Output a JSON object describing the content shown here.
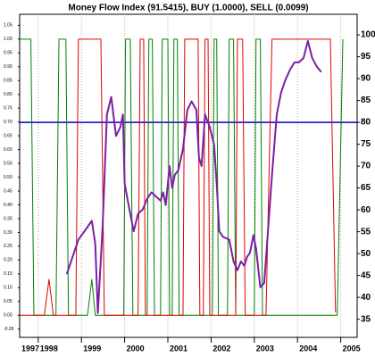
{
  "chart_data": {
    "type": "line",
    "title": "Money Flow Index (91.5415), BUY (1.0000), SELL (0.0099)",
    "xlim": [
      1997.57,
      2005.38
    ],
    "xticks": [
      1997,
      1998,
      1999,
      2000,
      2001,
      2002,
      2003,
      2004,
      2005
    ],
    "ylim": [
      -0.08,
      1.09
    ],
    "yticks": [
      1.05,
      {
        "value": 1.0,
        "label": "1.00"
      },
      0.95,
      {
        "value": 0.9,
        "label": "0.90"
      },
      0.85,
      {
        "value": 0.8,
        "label": "0.80"
      },
      0.75,
      {
        "value": 0.7,
        "label": "0.70"
      },
      0.65,
      {
        "value": 0.6,
        "label": "0.60"
      },
      0.55,
      {
        "value": 0.5,
        "label": "0.50"
      },
      0.45,
      {
        "value": 0.4,
        "label": "0.40"
      },
      0.35,
      {
        "value": 0.3,
        "label": "0.30"
      },
      0.25,
      {
        "value": 0.2,
        "label": "0.20"
      },
      0.15,
      {
        "value": 0.1,
        "label": "0.10"
      },
      0.05,
      {
        "value": 0.0,
        "label": "0.00"
      },
      -0.05
    ],
    "y2lim": [
      30.85,
      104.7
    ],
    "y2ticks": [
      100,
      95,
      90,
      85,
      80,
      75,
      70,
      65,
      60,
      55,
      50,
      45,
      40,
      35
    ],
    "xgrid": true,
    "reference_lines": [
      {
        "axis": "y2",
        "value": 80,
        "color": "#0000cc"
      }
    ],
    "series": [
      {
        "color": "#008000",
        "axis": "y",
        "x": [
          1997.57,
          1997.83,
          1997.9,
          1998.41,
          1998.48,
          1998.64,
          1998.7,
          1999.14,
          1999.24,
          1999.32,
          1999.98,
          2000.02,
          2000.13,
          2000.19,
          2000.52,
          2000.56,
          2000.64,
          2000.69,
          2000.83,
          2000.87,
          2001.0,
          2001.04,
          2001.1,
          2001.14,
          2001.22,
          2001.26,
          2002.03,
          2002.07,
          2002.13,
          2002.17,
          2002.38,
          2002.42,
          2002.52,
          2002.57,
          2003.0,
          2003.04,
          2003.14,
          2003.19,
          2004.92,
          2005.05
        ],
        "values": [
          1,
          1,
          0,
          0,
          1,
          1,
          0,
          0,
          0.13,
          0,
          0,
          1,
          1,
          0,
          0,
          1,
          1,
          0,
          0,
          1,
          1,
          0,
          0,
          1,
          1,
          0,
          0,
          1,
          1,
          0,
          0,
          1,
          1,
          0,
          0,
          1,
          1,
          0,
          0,
          1
        ]
      },
      {
        "color": "#e00000",
        "axis": "y",
        "x": [
          1997.57,
          1998.14,
          1998.25,
          1998.35,
          1998.87,
          1998.93,
          1999.45,
          1999.53,
          2000.31,
          2000.36,
          2000.44,
          2000.48,
          2001.35,
          2001.39,
          2001.7,
          2001.74,
          2001.82,
          2001.86,
          2001.93,
          2001.97,
          2002.57,
          2002.61,
          2002.73,
          2002.79,
          2003.27,
          2003.41,
          2004.76,
          2004.88
        ],
        "values": [
          0,
          0,
          0.13,
          0,
          0,
          1,
          1,
          0,
          0,
          1,
          1,
          0,
          0,
          1,
          1,
          0,
          0,
          1,
          1,
          0,
          0,
          1,
          1,
          0,
          0,
          1,
          1,
          0.01
        ]
      },
      {
        "color": "#7b1fa2",
        "axis": "y2",
        "x": [
          1998.66,
          1998.76,
          1998.93,
          1999.07,
          1999.24,
          1999.32,
          1999.38,
          1999.49,
          1999.59,
          1999.69,
          1999.8,
          1999.9,
          1999.96,
          2000.0,
          2000.11,
          2000.21,
          2000.31,
          2000.42,
          2000.52,
          2000.62,
          2000.73,
          2000.83,
          2000.89,
          2000.95,
          2001.04,
          2001.1,
          2001.16,
          2001.24,
          2001.35,
          2001.45,
          2001.55,
          2001.66,
          2001.72,
          2001.78,
          2001.86,
          2001.97,
          2002.07,
          2002.13,
          2002.19,
          2002.28,
          2002.42,
          2002.52,
          2002.61,
          2002.69,
          2002.77,
          2002.83,
          2002.9,
          2002.98,
          2003.04,
          2003.14,
          2003.23,
          2003.31,
          2003.41,
          2003.52,
          2003.62,
          2003.72,
          2003.83,
          2003.93,
          2004.03,
          2004.14,
          2004.24,
          2004.34,
          2004.45,
          2004.55
        ],
        "values": [
          45.3,
          48.2,
          53.2,
          55.1,
          57.5,
          52.2,
          36.4,
          56.1,
          81.8,
          85.8,
          76.9,
          78.9,
          81.8,
          66.0,
          60.1,
          55.1,
          59.1,
          60.1,
          62.5,
          64.0,
          63.0,
          62.1,
          64.0,
          61.1,
          70.0,
          65.0,
          68.0,
          69.0,
          73.9,
          82.8,
          84.8,
          82.8,
          71.9,
          70.0,
          81.8,
          78.9,
          74.9,
          66.0,
          55.1,
          53.8,
          53.2,
          48.2,
          46.2,
          48.2,
          47.2,
          49.2,
          50.2,
          54.2,
          51.2,
          42.3,
          43.3,
          54.2,
          68.0,
          81.8,
          86.8,
          89.7,
          92.1,
          93.7,
          93.7,
          94.7,
          98.6,
          94.7,
          92.7,
          91.5
        ]
      }
    ]
  }
}
